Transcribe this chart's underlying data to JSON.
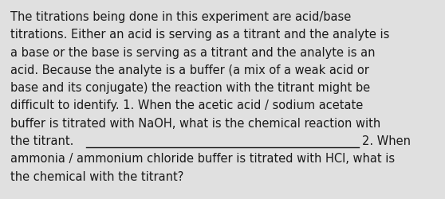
{
  "background_color": "#e0e0e0",
  "text_color": "#1a1a1a",
  "font_size": 10.5,
  "font_family": "DejaVu Sans",
  "paragraph1": "The titrations being done in this experiment are acid/base",
  "paragraph2": "titrations. Either an acid is serving as a titrant and the analyte is",
  "paragraph3": "a base or the base is serving as a titrant and the analyte is an",
  "paragraph4": "acid. Because the analyte is a buffer (a mix of a weak acid or",
  "paragraph5": "base and its conjugate) the reaction with the titrant might be",
  "paragraph6": "difficult to identify. 1. When the acetic acid / sodium acetate",
  "paragraph7": "buffer is titrated with NaOH, what is the chemical reaction with",
  "paragraph8_a": "the titrant. ",
  "paragraph8_b": "2. When",
  "paragraph9": "ammonia / ammonium chloride buffer is titrated with HCl, what is",
  "paragraph10": "the chemical with the titrant?",
  "fig_width": 5.58,
  "fig_height": 2.51,
  "dpi": 100
}
